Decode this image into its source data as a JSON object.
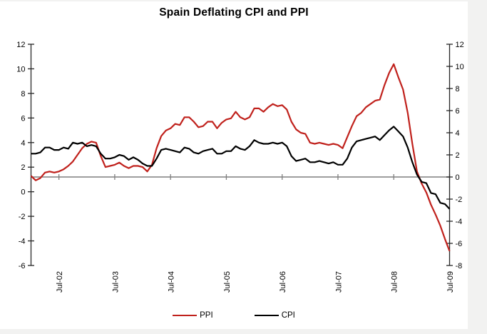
{
  "page": {
    "background_color": "#f2f2f1",
    "surface_color": "#ffffff"
  },
  "legend": [
    {
      "label": "PPI",
      "color": "#c0211c"
    },
    {
      "label": "CPI",
      "color": "#000000"
    }
  ],
  "chart_data": {
    "type": "line",
    "title": "Spain Deflating CPI and PPI",
    "xlabel": "",
    "ylabel": "",
    "grid": false,
    "legend_position": "bottom-center",
    "x_is_monthly_from": "Jan-2002",
    "x_tick_labels": [
      "Jul-02",
      "Jul-03",
      "Jul-04",
      "Jul-05",
      "Jul-06",
      "Jul-07",
      "Jul-08",
      "Jul-09"
    ],
    "x_tick_month_indices": [
      6,
      18,
      30,
      42,
      54,
      66,
      78,
      90
    ],
    "left_axis": {
      "min": -6,
      "max": 12,
      "step": 2
    },
    "right_axis": {
      "min": -8,
      "max": 12,
      "step": 2
    },
    "zero_line_axis": "right",
    "zero_line_color": "#7f7f7f",
    "axis_color": "#262626",
    "series": [
      {
        "name": "PPI",
        "axis": "right",
        "color": "#c0211c",
        "values": [
          0.1,
          -0.3,
          -0.1,
          0.4,
          0.5,
          0.4,
          0.5,
          0.7,
          1.0,
          1.4,
          2.0,
          2.6,
          3.0,
          3.2,
          3.1,
          1.9,
          0.9,
          1.0,
          1.1,
          1.3,
          1.0,
          0.8,
          1.0,
          1.0,
          0.9,
          0.5,
          1.1,
          2.6,
          3.7,
          4.2,
          4.4,
          4.8,
          4.7,
          5.4,
          5.4,
          5.0,
          4.5,
          4.6,
          5.0,
          5.0,
          4.4,
          4.9,
          5.2,
          5.3,
          5.9,
          5.4,
          5.2,
          5.4,
          6.2,
          6.2,
          5.9,
          6.3,
          6.6,
          6.4,
          6.5,
          6.1,
          5.0,
          4.3,
          4.0,
          3.9,
          3.1,
          3.0,
          3.1,
          3.0,
          2.9,
          3.0,
          2.9,
          2.6,
          3.6,
          4.6,
          5.5,
          5.8,
          6.3,
          6.6,
          6.9,
          7.0,
          8.3,
          9.4,
          10.2,
          9.0,
          7.9,
          5.8,
          3.0,
          0.5,
          -0.6,
          -1.4,
          -2.5,
          -3.4,
          -4.4,
          -5.6,
          -6.7
        ]
      },
      {
        "name": "CPI",
        "axis": "left",
        "color": "#000000",
        "values": [
          3.1,
          3.1,
          3.2,
          3.6,
          3.6,
          3.4,
          3.4,
          3.6,
          3.5,
          4.0,
          3.9,
          4.0,
          3.7,
          3.8,
          3.7,
          3.1,
          2.7,
          2.7,
          2.8,
          3.0,
          2.9,
          2.6,
          2.8,
          2.6,
          2.3,
          2.1,
          2.1,
          2.7,
          3.4,
          3.5,
          3.4,
          3.3,
          3.2,
          3.6,
          3.5,
          3.2,
          3.1,
          3.3,
          3.4,
          3.5,
          3.1,
          3.1,
          3.3,
          3.3,
          3.7,
          3.5,
          3.4,
          3.7,
          4.2,
          4.0,
          3.9,
          3.9,
          4.0,
          3.9,
          4.0,
          3.7,
          2.9,
          2.5,
          2.6,
          2.7,
          2.4,
          2.4,
          2.5,
          2.4,
          2.3,
          2.4,
          2.2,
          2.2,
          2.7,
          3.6,
          4.1,
          4.2,
          4.3,
          4.4,
          4.5,
          4.2,
          4.6,
          5.0,
          5.3,
          4.9,
          4.5,
          3.6,
          2.4,
          1.4,
          0.8,
          0.7,
          -0.1,
          -0.2,
          -0.9,
          -1.0,
          -1.4
        ]
      }
    ]
  }
}
